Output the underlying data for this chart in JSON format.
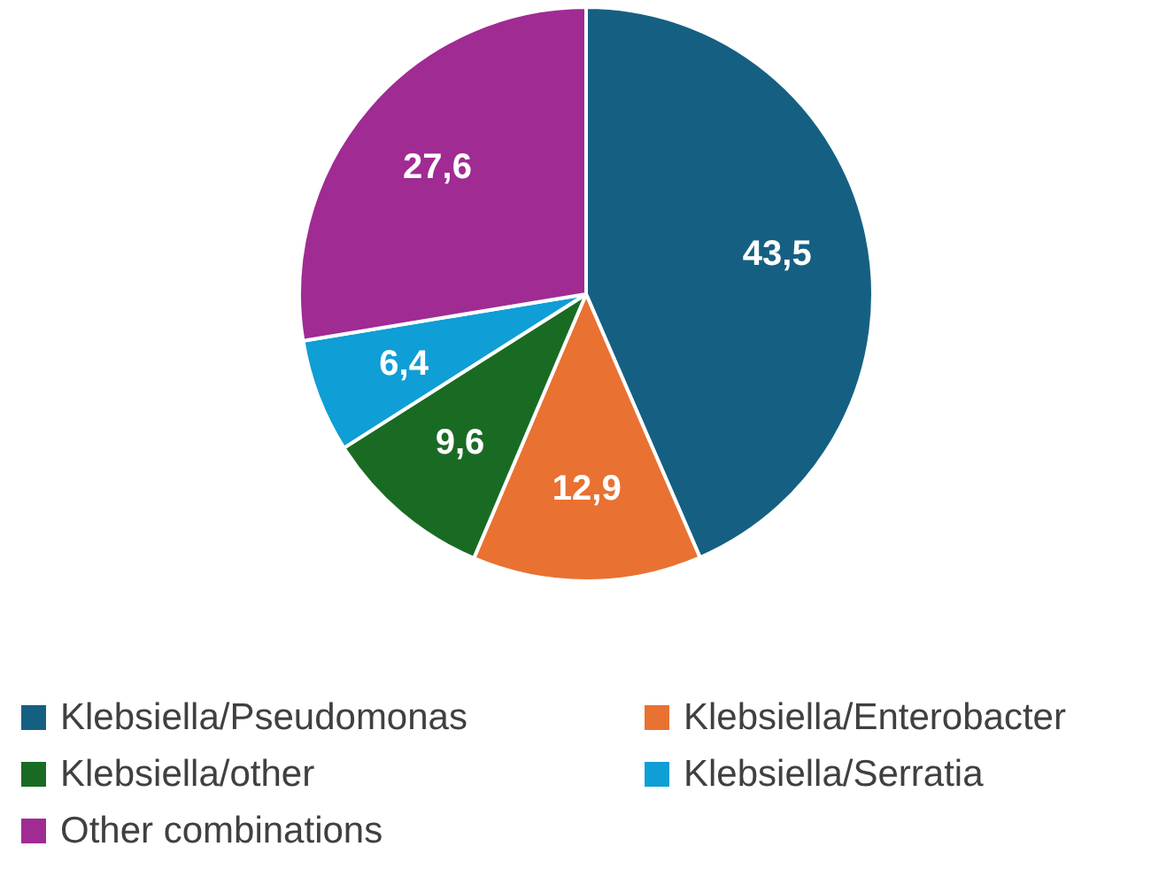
{
  "chart_data": {
    "type": "pie",
    "categories": [
      "Klebsiella/Pseudomonas",
      "Klebsiella/Enterobacter",
      "Klebsiella/other",
      "Klebsiella/Serratia",
      "Other combinations"
    ],
    "values": [
      43.5,
      12.9,
      9.6,
      6.4,
      27.6
    ],
    "colors": [
      "#156082",
      "#e97132",
      "#196b24",
      "#0f9ed5",
      "#a02b93"
    ],
    "value_labels": [
      "43,5",
      "12,9",
      "9,6",
      "6,4",
      "27,6"
    ],
    "legend": "bottom"
  }
}
